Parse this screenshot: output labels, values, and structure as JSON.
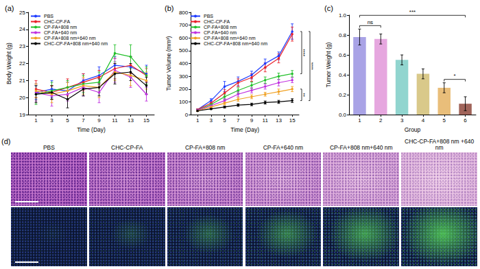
{
  "chart_data": [
    {
      "panel_label": "(a)",
      "type": "line",
      "x_label": "Time (Day)",
      "y_label": "Body Weight (g)",
      "x": [
        1,
        3,
        5,
        7,
        9,
        11,
        13,
        15
      ],
      "xlim": [
        0,
        16
      ],
      "xticks": [
        1,
        3,
        5,
        7,
        9,
        11,
        13,
        15
      ],
      "ylim": [
        19,
        25
      ],
      "yticks": [
        19,
        20,
        21,
        22,
        23,
        24,
        25
      ],
      "grid": false,
      "legend": "top-left",
      "marker": "circle",
      "line_style": "solid",
      "series": [
        {
          "name": "PBS",
          "color": "#1f3cff",
          "values": [
            20.3,
            20.5,
            20.4,
            21.0,
            21.3,
            21.9,
            21.8,
            21.4
          ],
          "errors": [
            0.4,
            0.5,
            0.5,
            0.4,
            0.5,
            0.5,
            0.6,
            0.5
          ]
        },
        {
          "name": "CHC-CP-FA",
          "color": "#e8202a",
          "values": [
            20.5,
            20.3,
            20.6,
            20.9,
            21.2,
            21.7,
            21.9,
            21.3
          ],
          "errors": [
            0.5,
            0.4,
            0.5,
            0.5,
            0.4,
            0.6,
            0.5,
            0.4
          ]
        },
        {
          "name": "CP-FA+808 nm",
          "color": "#22c02a",
          "values": [
            20.2,
            20.4,
            20.6,
            20.8,
            20.9,
            22.6,
            22.4,
            21.3
          ],
          "errors": [
            0.6,
            0.5,
            0.4,
            0.5,
            0.6,
            0.5,
            0.7,
            0.5
          ]
        },
        {
          "name": "CP-FA+640 nm",
          "color": "#c030e0",
          "values": [
            20.3,
            20.1,
            20.2,
            20.6,
            20.3,
            21.6,
            21.2,
            20.2
          ],
          "errors": [
            0.5,
            0.6,
            0.4,
            0.5,
            0.6,
            0.7,
            0.6,
            0.4
          ]
        },
        {
          "name": "CP-FA+808 nm+640 nm",
          "color": "#f0a020",
          "values": [
            20.4,
            20.2,
            20.4,
            20.7,
            20.6,
            21.5,
            21.3,
            21.0
          ],
          "errors": [
            0.4,
            0.5,
            0.5,
            0.5,
            0.6,
            0.5,
            0.6,
            0.5
          ]
        },
        {
          "name": "CHC-CP-FA+808 nm+640 nm",
          "color": "#000000",
          "values": [
            20.2,
            20.3,
            19.9,
            20.5,
            20.6,
            21.4,
            21.5,
            20.7
          ],
          "errors": [
            0.5,
            0.4,
            0.5,
            0.4,
            0.5,
            0.6,
            0.5,
            0.5
          ]
        }
      ]
    },
    {
      "panel_label": "(b)",
      "type": "line",
      "x_label": "Time (Day)",
      "y_label": "Tumor Volume (mm³)",
      "x": [
        1,
        3,
        5,
        7,
        9,
        11,
        13,
        15
      ],
      "xlim": [
        0,
        16
      ],
      "xticks": [
        1,
        3,
        5,
        7,
        9,
        11,
        13,
        15
      ],
      "ylim": [
        0,
        800
      ],
      "yticks": [
        0,
        100,
        200,
        300,
        400,
        500,
        600,
        700,
        800
      ],
      "grid": false,
      "legend": "top-left",
      "marker": "circle",
      "line_style": "solid",
      "series": [
        {
          "name": "PBS",
          "color": "#1f3cff",
          "values": [
            40,
            110,
            220,
            260,
            310,
            400,
            460,
            650
          ],
          "errors": [
            5,
            15,
            40,
            35,
            30,
            35,
            30,
            60
          ]
        },
        {
          "name": "CHC-CP-FA",
          "color": "#e8202a",
          "values": [
            40,
            90,
            170,
            250,
            290,
            370,
            440,
            630
          ],
          "errors": [
            5,
            12,
            25,
            30,
            30,
            35,
            35,
            55
          ]
        },
        {
          "name": "CP-FA+808 nm",
          "color": "#22c02a",
          "values": [
            35,
            80,
            140,
            190,
            230,
            270,
            300,
            320
          ],
          "errors": [
            5,
            10,
            20,
            20,
            25,
            25,
            25,
            25
          ]
        },
        {
          "name": "CP-FA+640 nm",
          "color": "#c030e0",
          "values": [
            35,
            70,
            110,
            160,
            190,
            220,
            250,
            270
          ],
          "errors": [
            5,
            10,
            15,
            20,
            20,
            20,
            25,
            20
          ]
        },
        {
          "name": "CP-FA+808 nm+640 nm",
          "color": "#f0a020",
          "values": [
            30,
            60,
            90,
            120,
            140,
            160,
            180,
            200
          ],
          "errors": [
            5,
            8,
            12,
            15,
            15,
            15,
            20,
            20
          ]
        },
        {
          "name": "CHC-CP-FA+808 nm+640 nm",
          "color": "#000000",
          "values": [
            30,
            45,
            60,
            75,
            80,
            95,
            100,
            110
          ],
          "errors": [
            5,
            5,
            8,
            10,
            10,
            12,
            12,
            15
          ]
        }
      ],
      "annotations": [
        {
          "text": "****",
          "from": "PBS",
          "to": "CP-FA+808 nm"
        },
        {
          "text": "****",
          "from": "PBS",
          "to": "CHC-CP-FA+808 nm+640 nm"
        },
        {
          "text": "**",
          "from": "CP-FA+808 nm+640 nm",
          "to": "CHC-CP-FA+808 nm+640 nm"
        }
      ]
    },
    {
      "panel_label": "(c)",
      "type": "bar",
      "x_label": "Group",
      "y_label": "Tumor Weight (g)",
      "categories": [
        "1",
        "2",
        "3",
        "4",
        "5",
        "6"
      ],
      "values": [
        0.78,
        0.76,
        0.55,
        0.41,
        0.27,
        0.11
      ],
      "errors": [
        0.08,
        0.05,
        0.05,
        0.05,
        0.05,
        0.07
      ],
      "colors": [
        "#a9a3e6",
        "#e6a7df",
        "#91d5cf",
        "#d9c98a",
        "#e9be7a",
        "#a0645a"
      ],
      "ylim": [
        0,
        1.0
      ],
      "yticks": [
        {
          "value": 0,
          "label": "0.0"
        },
        0.2,
        0.4,
        0.6,
        0.8,
        {
          "value": 1.0,
          "label": "1.0"
        }
      ],
      "grid": false,
      "annotations": [
        {
          "text": "ns",
          "from": "1",
          "to": "2"
        },
        {
          "text": "***",
          "from": "1",
          "to": "6"
        },
        {
          "text": "*",
          "from": "5",
          "to": "6"
        }
      ]
    }
  ],
  "images": {
    "panel_label": "(d)",
    "columns": [
      "PBS",
      "CHC-CP-FA",
      "CP-FA+808 nm",
      "CP-FA+640 nm",
      "CP-FA+808 nm+640 nm",
      "CHC-CP-FA+808 nm +640 nm"
    ]
  }
}
